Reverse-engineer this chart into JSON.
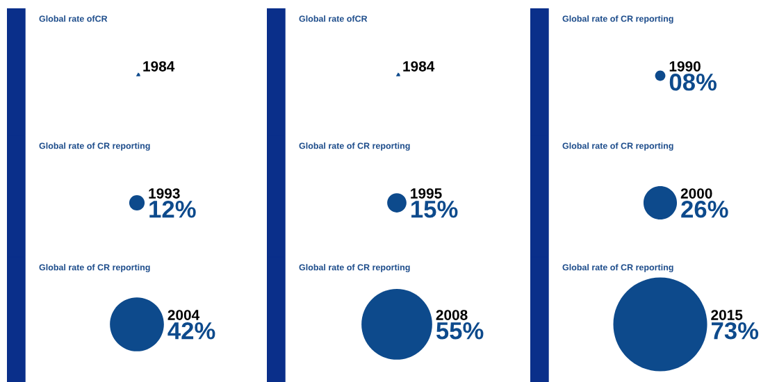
{
  "chart_data": [
    {
      "type": "other",
      "title": "Global rate ofCR",
      "categories": [
        "1984"
      ],
      "values": [
        null
      ],
      "value_labels": [
        null
      ],
      "color": "#0d4a8c"
    },
    {
      "type": "other",
      "title": "Global rate ofCR",
      "categories": [
        "1984"
      ],
      "values": [
        null
      ],
      "value_labels": [
        null
      ],
      "color": "#0d4a8c"
    },
    {
      "type": "other",
      "title": "Global rate of CR reporting",
      "categories": [
        "1990"
      ],
      "values": [
        8
      ],
      "value_labels": [
        "08%"
      ],
      "color": "#0d4a8c"
    },
    {
      "type": "other",
      "title": "Global rate of CR reporting",
      "categories": [
        "1993"
      ],
      "values": [
        12
      ],
      "value_labels": [
        "12%"
      ],
      "color": "#0d4a8c"
    },
    {
      "type": "other",
      "title": "Global rate of CR reporting",
      "categories": [
        "1995"
      ],
      "values": [
        15
      ],
      "value_labels": [
        "15%"
      ],
      "color": "#0d4a8c"
    },
    {
      "type": "other",
      "title": "Global rate of CR reporting",
      "categories": [
        "2000"
      ],
      "values": [
        26
      ],
      "value_labels": [
        "26%"
      ],
      "color": "#0d4a8c"
    },
    {
      "type": "other",
      "title": "Global rate of CR reporting",
      "categories": [
        "2004"
      ],
      "values": [
        42
      ],
      "value_labels": [
        "42%"
      ],
      "color": "#0d4a8c"
    },
    {
      "type": "other",
      "title": "Global rate of CR reporting",
      "categories": [
        "2008"
      ],
      "values": [
        55
      ],
      "value_labels": [
        "55%"
      ],
      "color": "#0d4a8c"
    },
    {
      "type": "other",
      "title": "Global rate of CR reporting",
      "categories": [
        "2015"
      ],
      "values": [
        73
      ],
      "value_labels": [
        "73%"
      ],
      "color": "#0d4a8c"
    }
  ]
}
